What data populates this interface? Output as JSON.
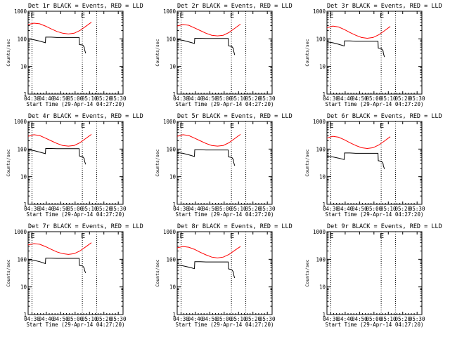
{
  "xlabel": "Start Time (29-Apr-14 04:27:20)",
  "ylabel": "Counts/sec",
  "x_tick_labels": [
    "04:30",
    "04:40",
    "04:50",
    "05:00",
    "05:10",
    "05:20",
    "05:30"
  ],
  "y_tick_labels": [
    "1",
    "10",
    "100",
    "1000"
  ],
  "x_range_minutes": [
    0,
    66
  ],
  "y_range_log": [
    1,
    1000
  ],
  "series_colors": {
    "events": "#000000",
    "lld": "#ff0000"
  },
  "marker_labels": {
    "start": "E",
    "end": "E"
  },
  "marker_times_min": {
    "start_event": 2.7,
    "end_event": 37.7,
    "range_end": 47.7
  },
  "dotted_lines_min": [
    2.7,
    37.7,
    47.7
  ],
  "chart_data": [
    {
      "type": "line",
      "title": "Det 1r BLACK = Events, RED = LLD",
      "xunit": "minutes since 04:27:20",
      "series": [
        {
          "color": "red",
          "x": [
            0,
            4,
            8,
            12,
            16,
            20,
            24,
            28,
            32,
            36,
            40,
            44
          ],
          "y": [
            330,
            370,
            350,
            290,
            230,
            185,
            160,
            150,
            160,
            200,
            280,
            400
          ]
        },
        {
          "color": "black",
          "x": [
            0,
            4,
            8,
            12,
            12.2,
            16,
            20,
            24,
            28,
            32,
            35.5,
            35.7,
            38,
            39,
            39.2,
            40
          ],
          "y": [
            100,
            93,
            83,
            72,
            115,
            115,
            112,
            112,
            112,
            112,
            112,
            62,
            60,
            50,
            42,
            30
          ]
        }
      ]
    },
    {
      "type": "line",
      "title": "Det 2r BLACK = Events, RED = LLD",
      "xunit": "minutes since 04:27:20",
      "series": [
        {
          "color": "red",
          "x": [
            0,
            4,
            8,
            12,
            16,
            20,
            24,
            28,
            32,
            36,
            40,
            44
          ],
          "y": [
            290,
            330,
            310,
            250,
            200,
            160,
            135,
            128,
            135,
            170,
            240,
            340
          ]
        },
        {
          "color": "black",
          "x": [
            0,
            4,
            8,
            12,
            12.2,
            16,
            20,
            24,
            28,
            32,
            35.5,
            35.7,
            38,
            39,
            39.2,
            40
          ],
          "y": [
            95,
            88,
            78,
            68,
            105,
            105,
            103,
            103,
            103,
            103,
            103,
            56,
            53,
            45,
            37,
            26
          ]
        }
      ]
    },
    {
      "type": "line",
      "title": "Det 3r BLACK = Events, RED = LLD",
      "xunit": "minutes since 04:27:20",
      "series": [
        {
          "color": "red",
          "x": [
            0,
            4,
            8,
            12,
            16,
            20,
            24,
            28,
            32,
            36,
            40,
            44
          ],
          "y": [
            250,
            290,
            270,
            220,
            170,
            135,
            112,
            105,
            112,
            140,
            195,
            280
          ]
        },
        {
          "color": "black",
          "x": [
            0,
            4,
            8,
            12,
            12.2,
            16,
            20,
            24,
            28,
            32,
            35.5,
            35.7,
            38,
            39,
            39.2,
            40
          ],
          "y": [
            78,
            72,
            64,
            55,
            84,
            84,
            82,
            82,
            82,
            82,
            82,
            46,
            44,
            37,
            30,
            22
          ]
        }
      ]
    },
    {
      "type": "line",
      "title": "Det 4r BLACK = Events, RED = LLD",
      "xunit": "minutes since 04:27:20",
      "series": [
        {
          "color": "red",
          "x": [
            0,
            4,
            8,
            12,
            16,
            20,
            24,
            28,
            32,
            36,
            40,
            44
          ],
          "y": [
            290,
            330,
            310,
            250,
            200,
            160,
            135,
            128,
            135,
            170,
            240,
            340
          ]
        },
        {
          "color": "black",
          "x": [
            0,
            4,
            8,
            12,
            12.2,
            16,
            20,
            24,
            28,
            32,
            35.5,
            35.7,
            38,
            39,
            39.2,
            40
          ],
          "y": [
            95,
            88,
            78,
            68,
            105,
            105,
            103,
            103,
            103,
            103,
            103,
            56,
            53,
            45,
            37,
            28
          ]
        }
      ]
    },
    {
      "type": "line",
      "title": "Det 5r BLACK = Events, RED = LLD",
      "xunit": "minutes since 04:27:20",
      "series": [
        {
          "color": "red",
          "x": [
            0,
            4,
            8,
            12,
            16,
            20,
            24,
            28,
            32,
            36,
            40,
            44
          ],
          "y": [
            290,
            330,
            310,
            250,
            200,
            160,
            135,
            128,
            135,
            170,
            240,
            340
          ]
        },
        {
          "color": "black",
          "x": [
            0,
            4,
            8,
            12,
            12.2,
            16,
            20,
            24,
            28,
            32,
            35.5,
            35.7,
            38,
            39,
            39.2,
            40
          ],
          "y": [
            75,
            70,
            62,
            54,
            95,
            95,
            93,
            93,
            93,
            93,
            93,
            52,
            50,
            42,
            34,
            25
          ]
        }
      ]
    },
    {
      "type": "line",
      "title": "Det 6r BLACK = Events, RED = LLD",
      "xunit": "minutes since 04:27:20",
      "series": [
        {
          "color": "red",
          "x": [
            0,
            4,
            8,
            12,
            16,
            20,
            24,
            28,
            32,
            36,
            40,
            44
          ],
          "y": [
            250,
            290,
            270,
            220,
            170,
            135,
            112,
            105,
            112,
            140,
            195,
            280
          ]
        },
        {
          "color": "black",
          "x": [
            0,
            4,
            8,
            12,
            12.2,
            16,
            20,
            24,
            28,
            32,
            35.5,
            35.7,
            38,
            39,
            39.2,
            40
          ],
          "y": [
            55,
            52,
            47,
            42,
            72,
            72,
            70,
            70,
            70,
            70,
            70,
            38,
            36,
            30,
            25,
            19
          ]
        }
      ]
    },
    {
      "type": "line",
      "title": "Det 7r BLACK = Events, RED = LLD",
      "xunit": "minutes since 04:27:20",
      "series": [
        {
          "color": "red",
          "x": [
            0,
            4,
            8,
            12,
            16,
            20,
            24,
            28,
            32,
            36,
            40,
            44
          ],
          "y": [
            330,
            370,
            350,
            290,
            230,
            185,
            160,
            150,
            160,
            200,
            280,
            400
          ]
        },
        {
          "color": "black",
          "x": [
            0,
            4,
            8,
            12,
            12.2,
            16,
            20,
            24,
            28,
            32,
            35.5,
            35.7,
            38,
            39,
            39.2,
            40
          ],
          "y": [
            98,
            92,
            82,
            70,
            110,
            110,
            108,
            108,
            108,
            108,
            108,
            60,
            57,
            48,
            40,
            32
          ]
        }
      ]
    },
    {
      "type": "line",
      "title": "Det 8r BLACK = Events, RED = LLD",
      "xunit": "minutes since 04:27:20",
      "series": [
        {
          "color": "red",
          "x": [
            0,
            4,
            8,
            12,
            16,
            20,
            24,
            28,
            32,
            36,
            40,
            44
          ],
          "y": [
            260,
            290,
            275,
            230,
            180,
            145,
            120,
            112,
            120,
            150,
            210,
            290
          ]
        },
        {
          "color": "black",
          "x": [
            0,
            4,
            8,
            12,
            12.2,
            16,
            20,
            24,
            28,
            32,
            35.5,
            35.7,
            38,
            39,
            39.2,
            40
          ],
          "y": [
            62,
            58,
            52,
            46,
            82,
            82,
            80,
            80,
            80,
            80,
            80,
            45,
            42,
            35,
            28,
            21
          ]
        }
      ]
    },
    {
      "type": "line",
      "title": "Det 9r BLACK = Events, RED = LLD",
      "xunit": "minutes since 04:27:20",
      "series": []
    }
  ]
}
